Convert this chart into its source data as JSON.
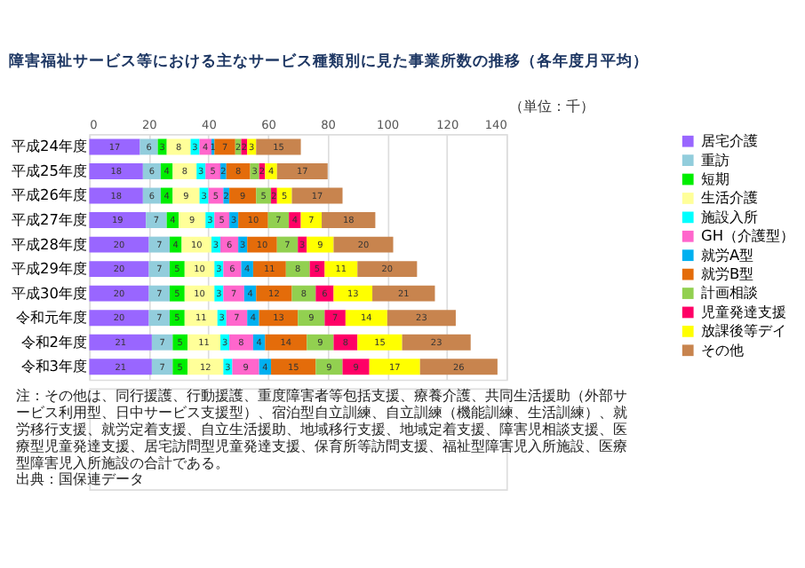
{
  "chart_data": {
    "type": "bar",
    "orientation": "horizontal",
    "stacked": true,
    "title": "障害福祉サービス等における主なサービス種類別に見た事業所数の推移（各年度月平均）",
    "categories": [
      "平成24年度",
      "平成25年度",
      "平成26年度",
      "平成27年度",
      "平成28年度",
      "平成29年度",
      "平成30年度",
      "令和元年度",
      "令和2年度",
      "令和3年度"
    ],
    "series": [
      {
        "name": "居宅介護",
        "color": "#9966ff",
        "values": [
          17,
          18,
          18,
          19,
          20,
          20,
          20,
          20,
          21,
          21
        ]
      },
      {
        "name": "重訪",
        "color": "#92cddc",
        "values": [
          6,
          6,
          6,
          7,
          7,
          7,
          7,
          7,
          7,
          7
        ]
      },
      {
        "name": "短期",
        "color": "#00ee00",
        "values": [
          3,
          4,
          4,
          4,
          4,
          5,
          5,
          5,
          5,
          5
        ]
      },
      {
        "name": "生活介護",
        "color": "#ffff99",
        "values": [
          8,
          8,
          9,
          9,
          10,
          10,
          10,
          11,
          11,
          12
        ]
      },
      {
        "name": "施設入所",
        "color": "#00ffff",
        "values": [
          3,
          3,
          3,
          3,
          3,
          3,
          3,
          3,
          3,
          3
        ]
      },
      {
        "name": "GH（介護型）",
        "color": "#ff66cc",
        "values": [
          4,
          5,
          5,
          5,
          6,
          6,
          7,
          7,
          8,
          9
        ]
      },
      {
        "name": "就労A型",
        "color": "#00b0f0",
        "values": [
          1,
          2,
          2,
          3,
          3,
          4,
          4,
          4,
          4,
          4
        ]
      },
      {
        "name": "就労B型",
        "color": "#e46c0a",
        "values": [
          7,
          8,
          9,
          10,
          10,
          11,
          12,
          13,
          14,
          15
        ]
      },
      {
        "name": "計画相談",
        "color": "#92d050",
        "values": [
          2,
          3,
          5,
          7,
          7,
          8,
          8,
          9,
          9,
          9
        ]
      },
      {
        "name": "児童発達支援",
        "color": "#ff0066",
        "values": [
          2,
          2,
          2,
          4,
          3,
          5,
          6,
          7,
          8,
          9
        ]
      },
      {
        "name": "放課後等デイ",
        "color": "#ffff00",
        "values": [
          3,
          4,
          5,
          7,
          9,
          11,
          13,
          14,
          15,
          17
        ]
      },
      {
        "name": "その他",
        "color": "#c8844e",
        "values": [
          15,
          17,
          17,
          18,
          20,
          20,
          21,
          23,
          23,
          26
        ]
      }
    ],
    "xlim": [
      0,
      140
    ],
    "xticks": [
      0,
      20,
      40,
      60,
      80,
      100,
      120,
      140
    ],
    "grid": "x",
    "legend": "right",
    "data_labels": true,
    "annotations": [
      "（単位：千）",
      "注：その他は、同行援護、行動援護、重度障害者等包括支援、療養介護、共同生活援助（外部サービス利用型、日中サービス支援型）、宿泊型自立訓練、自立訓練（機能訓練、生活訓練）、就労移行支援、就労定着支援、自立生活援助、地域移行支援、地域定着支援、障害児相談支援、医療型児童発達支援、居宅訪問型児童発達支援、保育所等訪問支援、福祉型障害児入所施設、医療型障害児入所施設の合計である。",
      "出典：国保連データ"
    ]
  }
}
